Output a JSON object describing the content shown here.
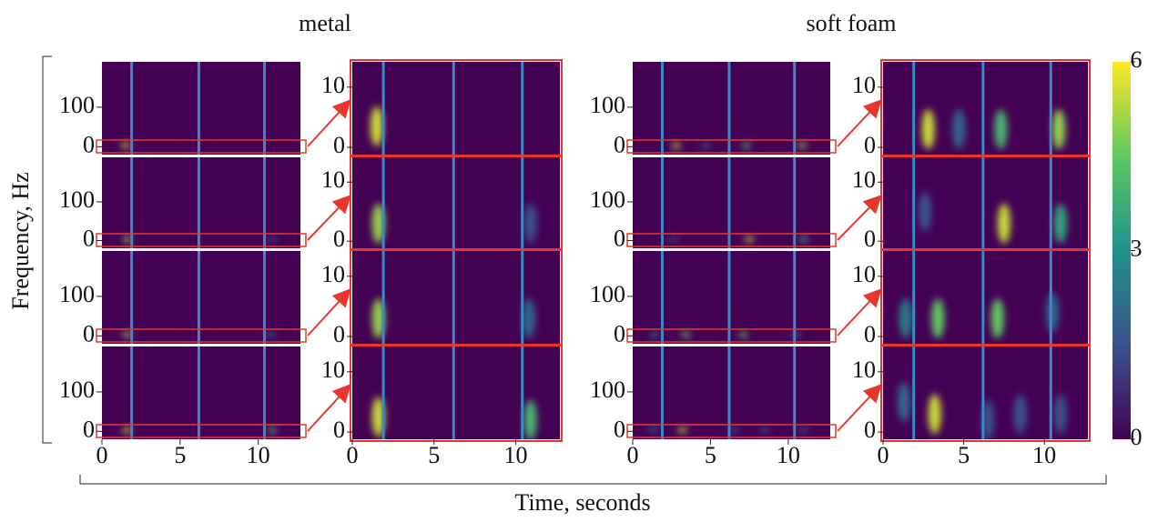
{
  "chart_data": {
    "type": "spectrogram",
    "xlabel": "Time, seconds",
    "ylabel": "Frequency, Hz",
    "xlim": [
      0,
      12.7
    ],
    "xticks": [
      0,
      5,
      10
    ],
    "ylim": [
      -20,
      215
    ],
    "yticks": [
      0,
      100
    ],
    "zoom_ylim": [
      -1.2,
      14.2
    ],
    "zoom_yticks": [
      0,
      10
    ],
    "clim": [
      0,
      6
    ],
    "cticks": [
      0,
      3,
      6
    ],
    "event_times": [
      1.9,
      6.2,
      10.4
    ],
    "series": [
      {
        "name": "metal",
        "rows": [
          [
            {
              "t": 1.5,
              "f": 3.5,
              "v": 5.5
            }
          ],
          [
            {
              "t": 1.6,
              "f": 3,
              "v": 5
            },
            {
              "t": 10.9,
              "f": 3,
              "v": 1.5
            }
          ],
          [
            {
              "t": 1.6,
              "f": 3,
              "v": 5
            },
            {
              "t": 10.8,
              "f": 3,
              "v": 2
            }
          ],
          [
            {
              "t": 1.6,
              "f": 2.5,
              "v": 5.5
            },
            {
              "t": 10.9,
              "f": 2,
              "v": 4
            }
          ]
        ]
      },
      {
        "name": "soft foam",
        "rows": [
          [
            {
              "t": 2.8,
              "f": 3,
              "v": 5.5
            },
            {
              "t": 4.7,
              "f": 3,
              "v": 2
            },
            {
              "t": 7.3,
              "f": 3,
              "v": 4
            },
            {
              "t": 10.9,
              "f": 3,
              "v": 5
            }
          ],
          [
            {
              "t": 7.5,
              "f": 3,
              "v": 5.5
            },
            {
              "t": 11,
              "f": 3,
              "v": 3.5
            },
            {
              "t": 2.6,
              "f": 5,
              "v": 1.5
            }
          ],
          [
            {
              "t": 1.4,
              "f": 3,
              "v": 2.5
            },
            {
              "t": 3.4,
              "f": 3,
              "v": 4.5
            },
            {
              "t": 7.1,
              "f": 3,
              "v": 4.5
            },
            {
              "t": 10.5,
              "f": 4,
              "v": 2
            }
          ],
          [
            {
              "t": 3.2,
              "f": 3,
              "v": 5.5
            },
            {
              "t": 1.3,
              "f": 5,
              "v": 2
            },
            {
              "t": 6.5,
              "f": 2,
              "v": 1.5
            },
            {
              "t": 8.5,
              "f": 3,
              "v": 1.5
            },
            {
              "t": 11,
              "f": 3,
              "v": 1.5
            }
          ]
        ]
      }
    ]
  }
}
